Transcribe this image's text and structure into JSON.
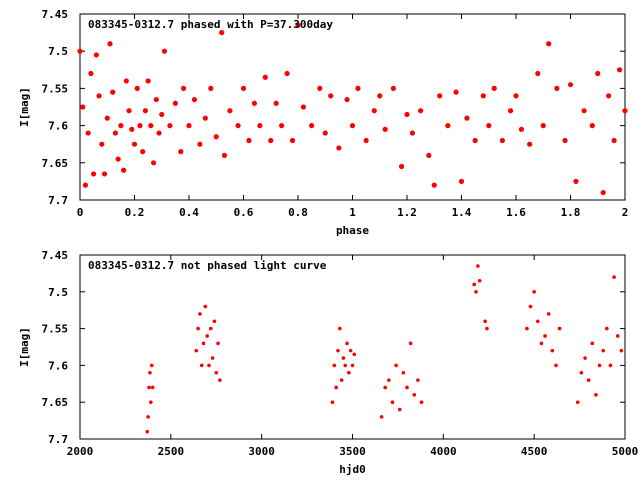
{
  "chart_data": [
    {
      "type": "scatter",
      "title": "083345-0312.7 phased with P=37.300day",
      "xlabel": "phase",
      "ylabel": "I[mag]",
      "xlim": [
        0,
        2
      ],
      "ylim": [
        7.45,
        7.7
      ],
      "y_inverted": true,
      "xticks": [
        "0",
        "0.2",
        "0.4",
        "0.6",
        "0.8",
        "1",
        "1.2",
        "1.4",
        "1.6",
        "1.8",
        "2"
      ],
      "yticks": [
        "7.45",
        "7.5",
        "7.55",
        "7.6",
        "7.65",
        "7.7"
      ],
      "marker_color": "#ff0000",
      "series": [
        {
          "x": [
            0.0,
            0.01,
            0.02,
            0.03,
            0.04,
            0.05,
            0.06,
            0.07,
            0.08,
            0.09,
            0.1,
            0.11,
            0.12,
            0.13,
            0.14,
            0.15,
            0.16,
            0.17,
            0.18,
            0.19,
            0.2,
            0.21,
            0.22,
            0.23,
            0.24,
            0.25,
            0.26,
            0.27,
            0.28,
            0.29,
            0.3,
            0.31,
            0.33,
            0.35,
            0.37,
            0.38,
            0.4,
            0.42,
            0.44,
            0.46,
            0.48,
            0.5,
            0.52,
            0.53,
            0.55,
            0.58,
            0.6,
            0.62,
            0.64,
            0.66,
            0.68,
            0.7,
            0.72,
            0.74,
            0.76,
            0.78,
            0.8,
            0.82,
            0.85,
            0.88,
            0.9,
            0.92,
            0.95,
            0.98,
            1.0,
            1.02,
            1.05,
            1.08,
            1.1,
            1.12,
            1.15,
            1.18,
            1.2,
            1.22,
            1.25,
            1.28,
            1.3,
            1.32,
            1.35,
            1.38,
            1.4,
            1.42,
            1.45,
            1.48,
            1.5,
            1.52,
            1.55,
            1.58,
            1.6,
            1.62,
            1.65,
            1.68,
            1.7,
            1.72,
            1.75,
            1.78,
            1.8,
            1.82,
            1.85,
            1.88,
            1.9,
            1.92,
            1.94,
            1.96,
            1.98,
            2.0
          ],
          "y": [
            7.5,
            7.575,
            7.68,
            7.61,
            7.53,
            7.665,
            7.505,
            7.56,
            7.625,
            7.665,
            7.59,
            7.49,
            7.555,
            7.61,
            7.645,
            7.6,
            7.66,
            7.54,
            7.58,
            7.605,
            7.625,
            7.55,
            7.6,
            7.635,
            7.58,
            7.54,
            7.6,
            7.65,
            7.565,
            7.61,
            7.585,
            7.5,
            7.6,
            7.57,
            7.635,
            7.55,
            7.6,
            7.565,
            7.625,
            7.59,
            7.55,
            7.615,
            7.475,
            7.64,
            7.58,
            7.6,
            7.55,
            7.62,
            7.57,
            7.6,
            7.535,
            7.62,
            7.57,
            7.6,
            7.53,
            7.62,
            7.465,
            7.575,
            7.6,
            7.55,
            7.61,
            7.56,
            7.63,
            7.565,
            7.6,
            7.55,
            7.62,
            7.58,
            7.56,
            7.605,
            7.55,
            7.655,
            7.585,
            7.61,
            7.58,
            7.64,
            7.68,
            7.56,
            7.6,
            7.555,
            7.675,
            7.59,
            7.62,
            7.56,
            7.6,
            7.55,
            7.62,
            7.58,
            7.56,
            7.605,
            7.625,
            7.53,
            7.6,
            7.49,
            7.55,
            7.62,
            7.545,
            7.675,
            7.58,
            7.6,
            7.53,
            7.69,
            7.56,
            7.62,
            7.525,
            7.58
          ]
        }
      ]
    },
    {
      "type": "scatter",
      "title": "083345-0312.7 not phased light curve",
      "xlabel": "hjd0",
      "ylabel": "I[mag]",
      "xlim": [
        2000,
        5000
      ],
      "ylim": [
        7.45,
        7.7
      ],
      "y_inverted": true,
      "xticks": [
        "2000",
        "2500",
        "3000",
        "3500",
        "4000",
        "4500",
        "5000"
      ],
      "yticks": [
        "7.45",
        "7.5",
        "7.55",
        "7.6",
        "7.65",
        "7.7"
      ],
      "marker_color": "#ff0000",
      "series": [
        {
          "x": [
            2370,
            2375,
            2380,
            2385,
            2390,
            2395,
            2400,
            2640,
            2650,
            2660,
            2670,
            2680,
            2690,
            2700,
            2710,
            2720,
            2730,
            2740,
            2750,
            2760,
            2770,
            3390,
            3400,
            3410,
            3420,
            3430,
            3440,
            3450,
            3460,
            3470,
            3480,
            3490,
            3500,
            3510,
            3660,
            3680,
            3700,
            3720,
            3740,
            3760,
            3780,
            3800,
            3820,
            3840,
            3860,
            3880,
            4170,
            4180,
            4190,
            4200,
            4230,
            4240,
            4460,
            4480,
            4500,
            4520,
            4540,
            4560,
            4580,
            4600,
            4620,
            4640,
            4740,
            4760,
            4780,
            4800,
            4820,
            4840,
            4860,
            4880,
            4900,
            4920,
            4940,
            4960,
            4980
          ],
          "y": [
            7.69,
            7.67,
            7.63,
            7.61,
            7.65,
            7.6,
            7.63,
            7.58,
            7.55,
            7.53,
            7.6,
            7.57,
            7.52,
            7.56,
            7.6,
            7.55,
            7.59,
            7.54,
            7.61,
            7.57,
            7.62,
            7.65,
            7.6,
            7.63,
            7.58,
            7.55,
            7.62,
            7.59,
            7.6,
            7.57,
            7.61,
            7.58,
            7.6,
            7.585,
            7.67,
            7.63,
            7.62,
            7.65,
            7.6,
            7.66,
            7.61,
            7.63,
            7.57,
            7.64,
            7.62,
            7.65,
            7.49,
            7.5,
            7.465,
            7.485,
            7.54,
            7.55,
            7.55,
            7.52,
            7.5,
            7.54,
            7.57,
            7.56,
            7.53,
            7.58,
            7.6,
            7.55,
            7.65,
            7.61,
            7.59,
            7.62,
            7.57,
            7.64,
            7.6,
            7.58,
            7.55,
            7.6,
            7.48,
            7.56,
            7.58
          ]
        }
      ]
    }
  ]
}
